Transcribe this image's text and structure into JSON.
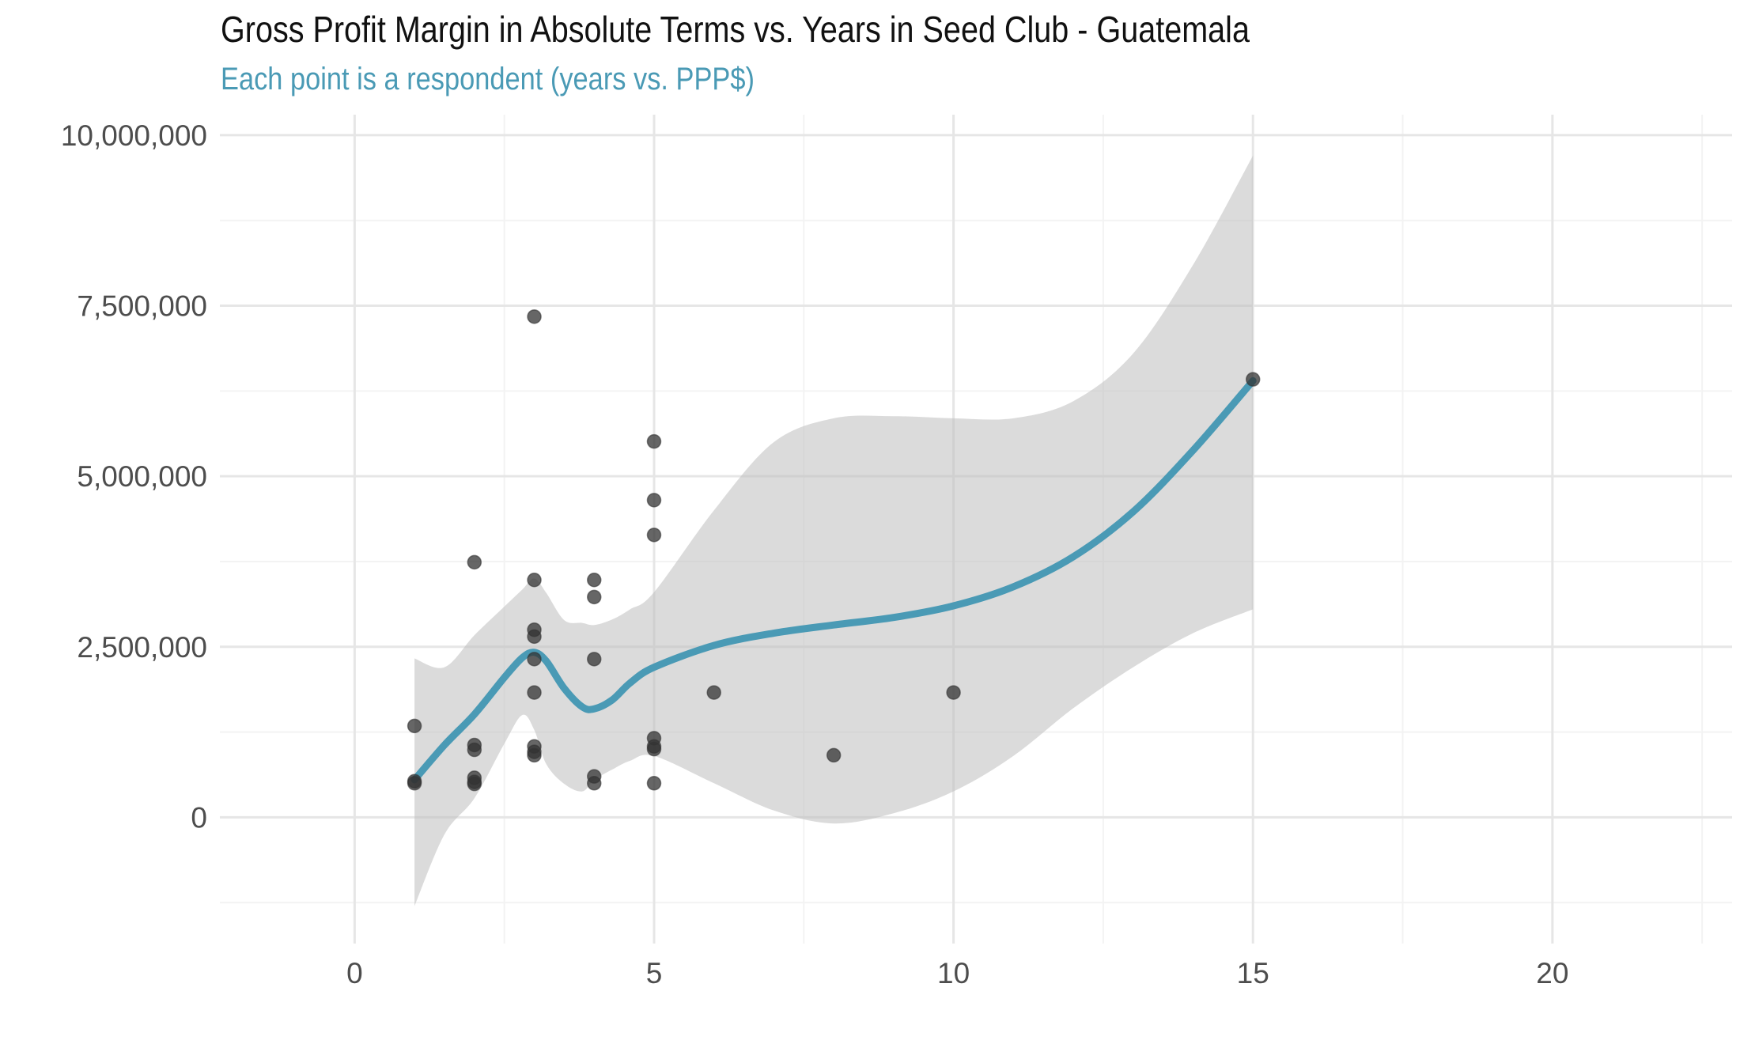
{
  "chart_data": {
    "type": "scatter",
    "title": "Gross Profit Margin in Absolute Terms vs. Years in Seed Club - Guatemala",
    "subtitle": "Each point is a respondent (years vs. PPP$)",
    "xlabel": "",
    "ylabel": "",
    "xlim": [
      -2.25,
      23.0
    ],
    "ylim": [
      -1850000,
      10300000
    ],
    "x_ticks": [
      0,
      5,
      10,
      15,
      20
    ],
    "x_tick_labels": [
      "0",
      "5",
      "10",
      "15",
      "20"
    ],
    "y_ticks": [
      0,
      2500000,
      5000000,
      7500000,
      10000000
    ],
    "y_tick_labels": [
      "0",
      "2,500,000",
      "5,000,000",
      "7,500,000",
      "10,000,000"
    ],
    "grid": true,
    "points": [
      {
        "x": 1,
        "y": 1340000
      },
      {
        "x": 1,
        "y": 530000
      },
      {
        "x": 1,
        "y": 500000
      },
      {
        "x": 2,
        "y": 3740000
      },
      {
        "x": 2,
        "y": 1060000
      },
      {
        "x": 2,
        "y": 990000
      },
      {
        "x": 2,
        "y": 580000
      },
      {
        "x": 2,
        "y": 520000
      },
      {
        "x": 2,
        "y": 490000
      },
      {
        "x": 3,
        "y": 7340000
      },
      {
        "x": 3,
        "y": 3480000
      },
      {
        "x": 3,
        "y": 2750000
      },
      {
        "x": 3,
        "y": 2650000
      },
      {
        "x": 3,
        "y": 2320000
      },
      {
        "x": 3,
        "y": 1830000
      },
      {
        "x": 3,
        "y": 1040000
      },
      {
        "x": 3,
        "y": 960000
      },
      {
        "x": 3,
        "y": 910000
      },
      {
        "x": 4,
        "y": 3480000
      },
      {
        "x": 4,
        "y": 3230000
      },
      {
        "x": 4,
        "y": 2320000
      },
      {
        "x": 4,
        "y": 600000
      },
      {
        "x": 4,
        "y": 500000
      },
      {
        "x": 5,
        "y": 5510000
      },
      {
        "x": 5,
        "y": 4650000
      },
      {
        "x": 5,
        "y": 4140000
      },
      {
        "x": 5,
        "y": 1160000
      },
      {
        "x": 5,
        "y": 1040000
      },
      {
        "x": 5,
        "y": 1000000
      },
      {
        "x": 5,
        "y": 500000
      },
      {
        "x": 6,
        "y": 1830000
      },
      {
        "x": 8,
        "y": 910000
      },
      {
        "x": 10,
        "y": 1830000
      },
      {
        "x": 15,
        "y": 6420000
      }
    ],
    "smooth": {
      "color": "#4a9ab5",
      "x": [
        1,
        1.5,
        2,
        2.5,
        2.8,
        3,
        3.2,
        3.5,
        3.8,
        4,
        4.3,
        4.6,
        5,
        6,
        7,
        8,
        9,
        10,
        11,
        12,
        13,
        14,
        15
      ],
      "y": [
        550000,
        1060000,
        1510000,
        2050000,
        2340000,
        2420000,
        2290000,
        1890000,
        1620000,
        1590000,
        1720000,
        1970000,
        2200000,
        2520000,
        2700000,
        2820000,
        2930000,
        3100000,
        3380000,
        3820000,
        4480000,
        5380000,
        6400000
      ],
      "ci_lower": [
        -1300000,
        -250000,
        280000,
        1080000,
        1500000,
        1280000,
        780000,
        490000,
        380000,
        550000,
        700000,
        830000,
        900000,
        500000,
        100000,
        -90000,
        60000,
        380000,
        900000,
        1600000,
        2200000,
        2700000,
        3050000
      ],
      "ci_upper": [
        2330000,
        2200000,
        2670000,
        3090000,
        3340000,
        3500000,
        3290000,
        2890000,
        2850000,
        2820000,
        2900000,
        3050000,
        3300000,
        4500000,
        5500000,
        5850000,
        5880000,
        5850000,
        5850000,
        6100000,
        6800000,
        8100000,
        9700000
      ]
    }
  }
}
